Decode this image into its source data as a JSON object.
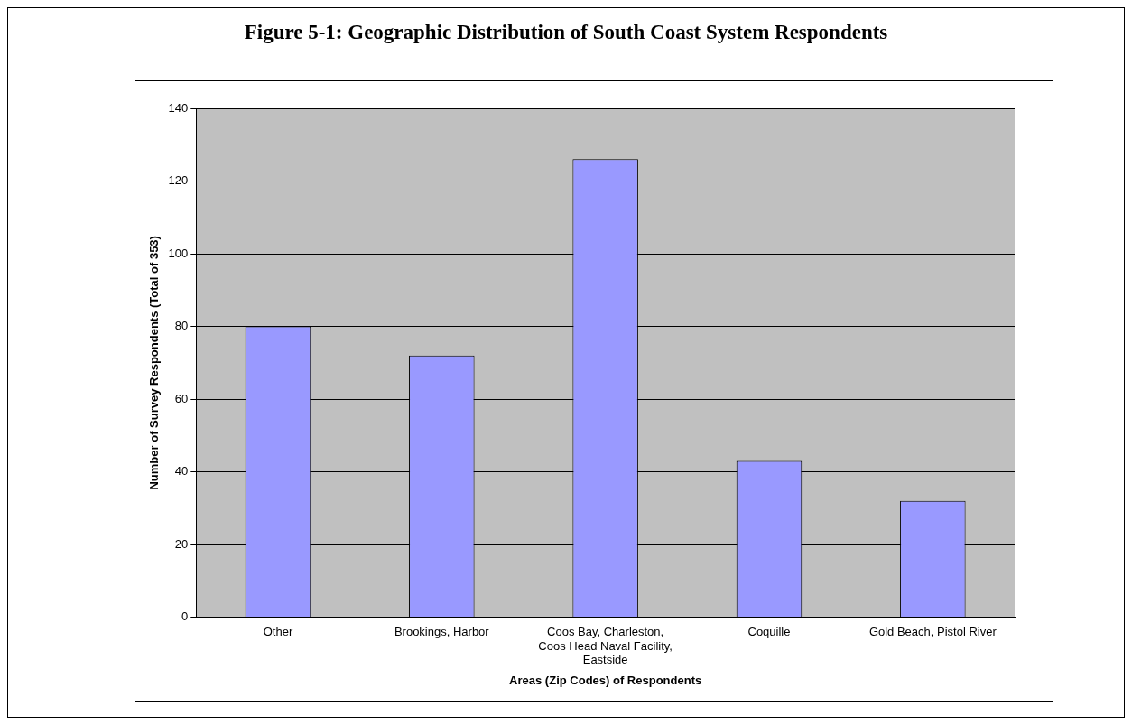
{
  "chart_data": {
    "type": "bar",
    "title": "Figure 5-1: Geographic Distribution of South Coast System Respondents",
    "xlabel": "Areas (Zip Codes) of Respondents",
    "ylabel": "Number of Survey Respondents (Total of 353)",
    "categories": [
      "Other",
      "Brookings, Harbor",
      "Coos Bay, Charleston, Coos Head Naval Facility, Eastside",
      "Coquille",
      "Gold Beach, Pistol River"
    ],
    "values": [
      80,
      72,
      126,
      43,
      32
    ],
    "color": "#9999ff",
    "ylim": [
      0,
      140
    ],
    "yticks": [
      0,
      20,
      40,
      60,
      80,
      100,
      120,
      140
    ],
    "grid": "y",
    "legend": false
  }
}
